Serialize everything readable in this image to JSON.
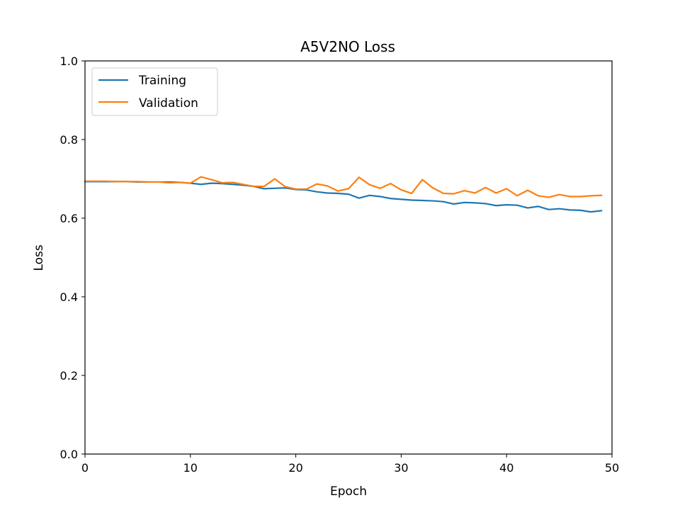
{
  "chart_data": {
    "type": "line",
    "title": "A5V2NO Loss",
    "xlabel": "Epoch",
    "ylabel": "Loss",
    "xlim": [
      0,
      50
    ],
    "ylim": [
      0,
      1
    ],
    "xticks": [
      0,
      10,
      20,
      30,
      40,
      50
    ],
    "yticks": [
      0.0,
      0.2,
      0.4,
      0.6,
      0.8,
      1.0
    ],
    "ytick_labels": [
      "0.0",
      "0.2",
      "0.4",
      "0.6",
      "0.8",
      "1.0"
    ],
    "grid": false,
    "legend": "top-left",
    "x": [
      0,
      1,
      2,
      3,
      4,
      5,
      6,
      7,
      8,
      9,
      10,
      11,
      12,
      13,
      14,
      15,
      16,
      17,
      18,
      19,
      20,
      21,
      22,
      23,
      24,
      25,
      26,
      27,
      28,
      29,
      30,
      31,
      32,
      33,
      34,
      35,
      36,
      37,
      38,
      39,
      40,
      41,
      42,
      43,
      44,
      45,
      46,
      47,
      48,
      49
    ],
    "series": [
      {
        "name": "Training",
        "color": "#1f77b4",
        "values": [
          0.693,
          0.693,
          0.693,
          0.693,
          0.693,
          0.692,
          0.692,
          0.692,
          0.692,
          0.691,
          0.689,
          0.686,
          0.689,
          0.688,
          0.686,
          0.684,
          0.681,
          0.675,
          0.676,
          0.677,
          0.673,
          0.672,
          0.667,
          0.664,
          0.663,
          0.661,
          0.651,
          0.658,
          0.655,
          0.65,
          0.648,
          0.646,
          0.645,
          0.644,
          0.642,
          0.636,
          0.64,
          0.639,
          0.637,
          0.632,
          0.634,
          0.633,
          0.626,
          0.63,
          0.622,
          0.624,
          0.621,
          0.62,
          0.616,
          0.619
        ]
      },
      {
        "name": "Validation",
        "color": "#ff7f0e",
        "values": [
          0.694,
          0.694,
          0.694,
          0.693,
          0.693,
          0.693,
          0.692,
          0.692,
          0.69,
          0.691,
          0.689,
          0.705,
          0.698,
          0.69,
          0.691,
          0.686,
          0.681,
          0.681,
          0.7,
          0.68,
          0.674,
          0.674,
          0.687,
          0.682,
          0.669,
          0.675,
          0.704,
          0.685,
          0.676,
          0.688,
          0.672,
          0.663,
          0.698,
          0.677,
          0.663,
          0.662,
          0.67,
          0.664,
          0.678,
          0.664,
          0.675,
          0.657,
          0.671,
          0.657,
          0.653,
          0.66,
          0.655,
          0.655,
          0.657,
          0.658
        ]
      }
    ]
  }
}
